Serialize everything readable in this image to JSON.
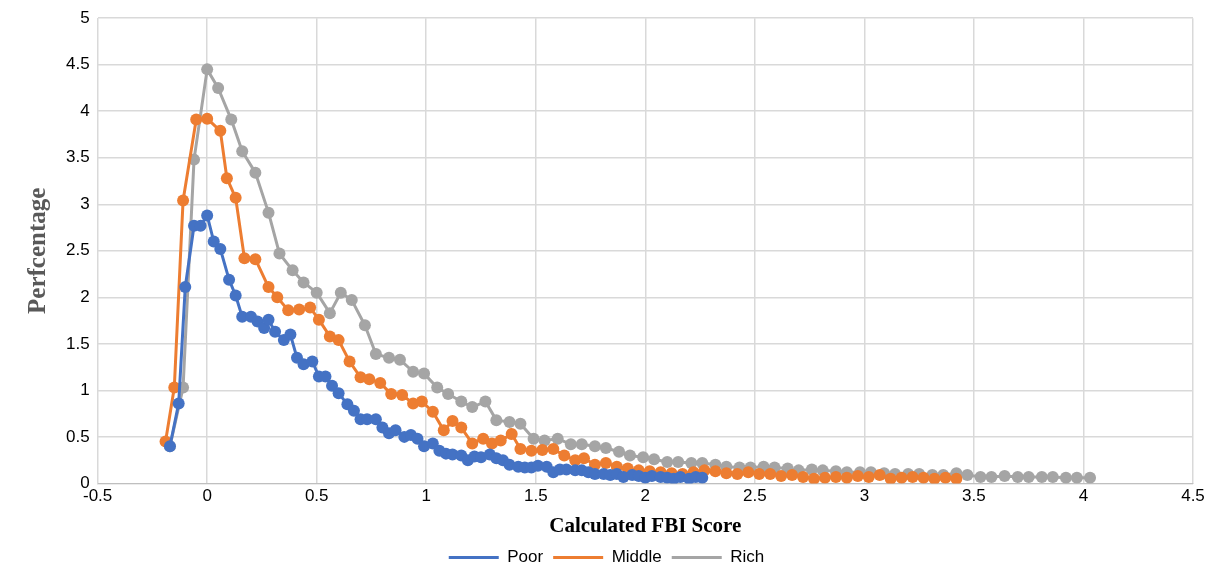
{
  "chart_data": {
    "type": "line",
    "xlabel": "Calculated FBI Score",
    "ylabel": "Perfcentage",
    "xlim": [
      -0.5,
      4.5
    ],
    "xticks": [
      -0.5,
      0,
      0.5,
      1,
      1.5,
      2,
      2.5,
      3,
      3.5,
      4,
      4.5
    ],
    "ylim": [
      0,
      5
    ],
    "yticks": [
      0,
      0.5,
      1,
      1.5,
      2,
      2.5,
      3,
      3.5,
      4,
      4.5,
      5
    ],
    "grid": true,
    "legend": "bottom",
    "marker": "circle",
    "line_style": "solid",
    "series": [
      {
        "name": "Poor",
        "color": "#4472c4",
        "x": [
          -0.17,
          -0.13,
          -0.1,
          -0.06,
          -0.03,
          0,
          0.03,
          0.06,
          0.1,
          0.13,
          0.16,
          0.2,
          0.23,
          0.26,
          0.28,
          0.31,
          0.35,
          0.38,
          0.41,
          0.44,
          0.48,
          0.51,
          0.54,
          0.57,
          0.6,
          0.64,
          0.67,
          0.7,
          0.73,
          0.77,
          0.8,
          0.83,
          0.86,
          0.9,
          0.93,
          0.96,
          0.99,
          1.03,
          1.06,
          1.09,
          1.12,
          1.16,
          1.19,
          1.22,
          1.25,
          1.29,
          1.32,
          1.35,
          1.38,
          1.42,
          1.45,
          1.48,
          1.51,
          1.55,
          1.58,
          1.61,
          1.64,
          1.68,
          1.71,
          1.74,
          1.77,
          1.81,
          1.84,
          1.87,
          1.9,
          1.94,
          1.97,
          2.0,
          2.03,
          2.07,
          2.1,
          2.13,
          2.16,
          2.2,
          2.23,
          2.26
        ],
        "values": [
          0.4,
          0.86,
          2.11,
          2.77,
          2.77,
          2.88,
          2.6,
          2.52,
          2.19,
          2.02,
          1.79,
          1.79,
          1.74,
          1.67,
          1.76,
          1.63,
          1.54,
          1.6,
          1.35,
          1.28,
          1.31,
          1.15,
          1.15,
          1.05,
          0.97,
          0.85,
          0.78,
          0.69,
          0.69,
          0.69,
          0.6,
          0.54,
          0.57,
          0.5,
          0.52,
          0.48,
          0.4,
          0.43,
          0.35,
          0.32,
          0.31,
          0.3,
          0.25,
          0.29,
          0.28,
          0.31,
          0.27,
          0.25,
          0.2,
          0.18,
          0.17,
          0.17,
          0.19,
          0.18,
          0.12,
          0.15,
          0.15,
          0.14,
          0.14,
          0.12,
          0.1,
          0.1,
          0.09,
          0.1,
          0.07,
          0.09,
          0.08,
          0.06,
          0.08,
          0.07,
          0.06,
          0.05,
          0.07,
          0.05,
          0.07,
          0.06
        ]
      },
      {
        "name": "Middle",
        "color": "#ed7d31",
        "x": [
          -0.19,
          -0.15,
          -0.11,
          -0.05,
          0,
          0.06,
          0.09,
          0.13,
          0.17,
          0.22,
          0.28,
          0.32,
          0.37,
          0.42,
          0.47,
          0.51,
          0.56,
          0.6,
          0.65,
          0.7,
          0.74,
          0.79,
          0.84,
          0.89,
          0.94,
          0.98,
          1.03,
          1.08,
          1.12,
          1.16,
          1.21,
          1.26,
          1.3,
          1.34,
          1.39,
          1.43,
          1.48,
          1.53,
          1.58,
          1.63,
          1.68,
          1.72,
          1.77,
          1.82,
          1.87,
          1.92,
          1.97,
          2.02,
          2.07,
          2.12,
          2.17,
          2.22,
          2.27,
          2.32,
          2.37,
          2.42,
          2.47,
          2.52,
          2.57,
          2.62,
          2.67,
          2.72,
          2.77,
          2.82,
          2.87,
          2.92,
          2.97,
          3.02,
          3.07,
          3.12,
          3.17,
          3.22,
          3.27,
          3.32,
          3.37,
          3.42
        ],
        "values": [
          0.45,
          1.03,
          3.04,
          3.91,
          3.92,
          3.79,
          3.28,
          3.07,
          2.42,
          2.41,
          2.11,
          2.0,
          1.86,
          1.87,
          1.89,
          1.76,
          1.58,
          1.54,
          1.31,
          1.14,
          1.12,
          1.08,
          0.96,
          0.95,
          0.86,
          0.88,
          0.77,
          0.57,
          0.67,
          0.6,
          0.43,
          0.48,
          0.43,
          0.46,
          0.53,
          0.37,
          0.35,
          0.36,
          0.37,
          0.3,
          0.25,
          0.27,
          0.2,
          0.22,
          0.18,
          0.16,
          0.14,
          0.13,
          0.12,
          0.11,
          0.1,
          0.12,
          0.14,
          0.13,
          0.11,
          0.1,
          0.12,
          0.1,
          0.1,
          0.08,
          0.09,
          0.07,
          0.05,
          0.06,
          0.07,
          0.06,
          0.08,
          0.07,
          0.09,
          0.05,
          0.06,
          0.07,
          0.06,
          0.05,
          0.06,
          0.05
        ]
      },
      {
        "name": "Rich",
        "color": "#a5a5a5",
        "x": [
          -0.17,
          -0.11,
          -0.06,
          0,
          0.05,
          0.11,
          0.16,
          0.22,
          0.28,
          0.33,
          0.39,
          0.44,
          0.5,
          0.56,
          0.61,
          0.66,
          0.72,
          0.77,
          0.83,
          0.88,
          0.94,
          0.99,
          1.05,
          1.1,
          1.16,
          1.21,
          1.27,
          1.32,
          1.38,
          1.43,
          1.49,
          1.54,
          1.6,
          1.66,
          1.71,
          1.77,
          1.82,
          1.88,
          1.93,
          1.99,
          2.04,
          2.1,
          2.15,
          2.21,
          2.26,
          2.32,
          2.37,
          2.43,
          2.48,
          2.54,
          2.59,
          2.65,
          2.7,
          2.76,
          2.81,
          2.87,
          2.92,
          2.98,
          3.03,
          3.09,
          3.14,
          3.2,
          3.25,
          3.31,
          3.36,
          3.42,
          3.47,
          3.53,
          3.58,
          3.64,
          3.7,
          3.75,
          3.81,
          3.86,
          3.92,
          3.97,
          4.03
        ],
        "values": [
          0.4,
          1.03,
          3.48,
          4.45,
          4.25,
          3.91,
          3.57,
          3.34,
          2.91,
          2.47,
          2.29,
          2.16,
          2.05,
          1.83,
          2.05,
          1.97,
          1.7,
          1.39,
          1.35,
          1.33,
          1.2,
          1.18,
          1.03,
          0.96,
          0.88,
          0.82,
          0.88,
          0.68,
          0.66,
          0.64,
          0.48,
          0.46,
          0.48,
          0.42,
          0.42,
          0.4,
          0.38,
          0.34,
          0.3,
          0.28,
          0.26,
          0.23,
          0.23,
          0.22,
          0.22,
          0.2,
          0.18,
          0.17,
          0.17,
          0.18,
          0.17,
          0.16,
          0.14,
          0.15,
          0.14,
          0.13,
          0.12,
          0.12,
          0.12,
          0.11,
          0.1,
          0.1,
          0.1,
          0.09,
          0.09,
          0.11,
          0.09,
          0.07,
          0.07,
          0.08,
          0.07,
          0.07,
          0.07,
          0.07,
          0.06,
          0.06,
          0.06
        ]
      }
    ]
  }
}
